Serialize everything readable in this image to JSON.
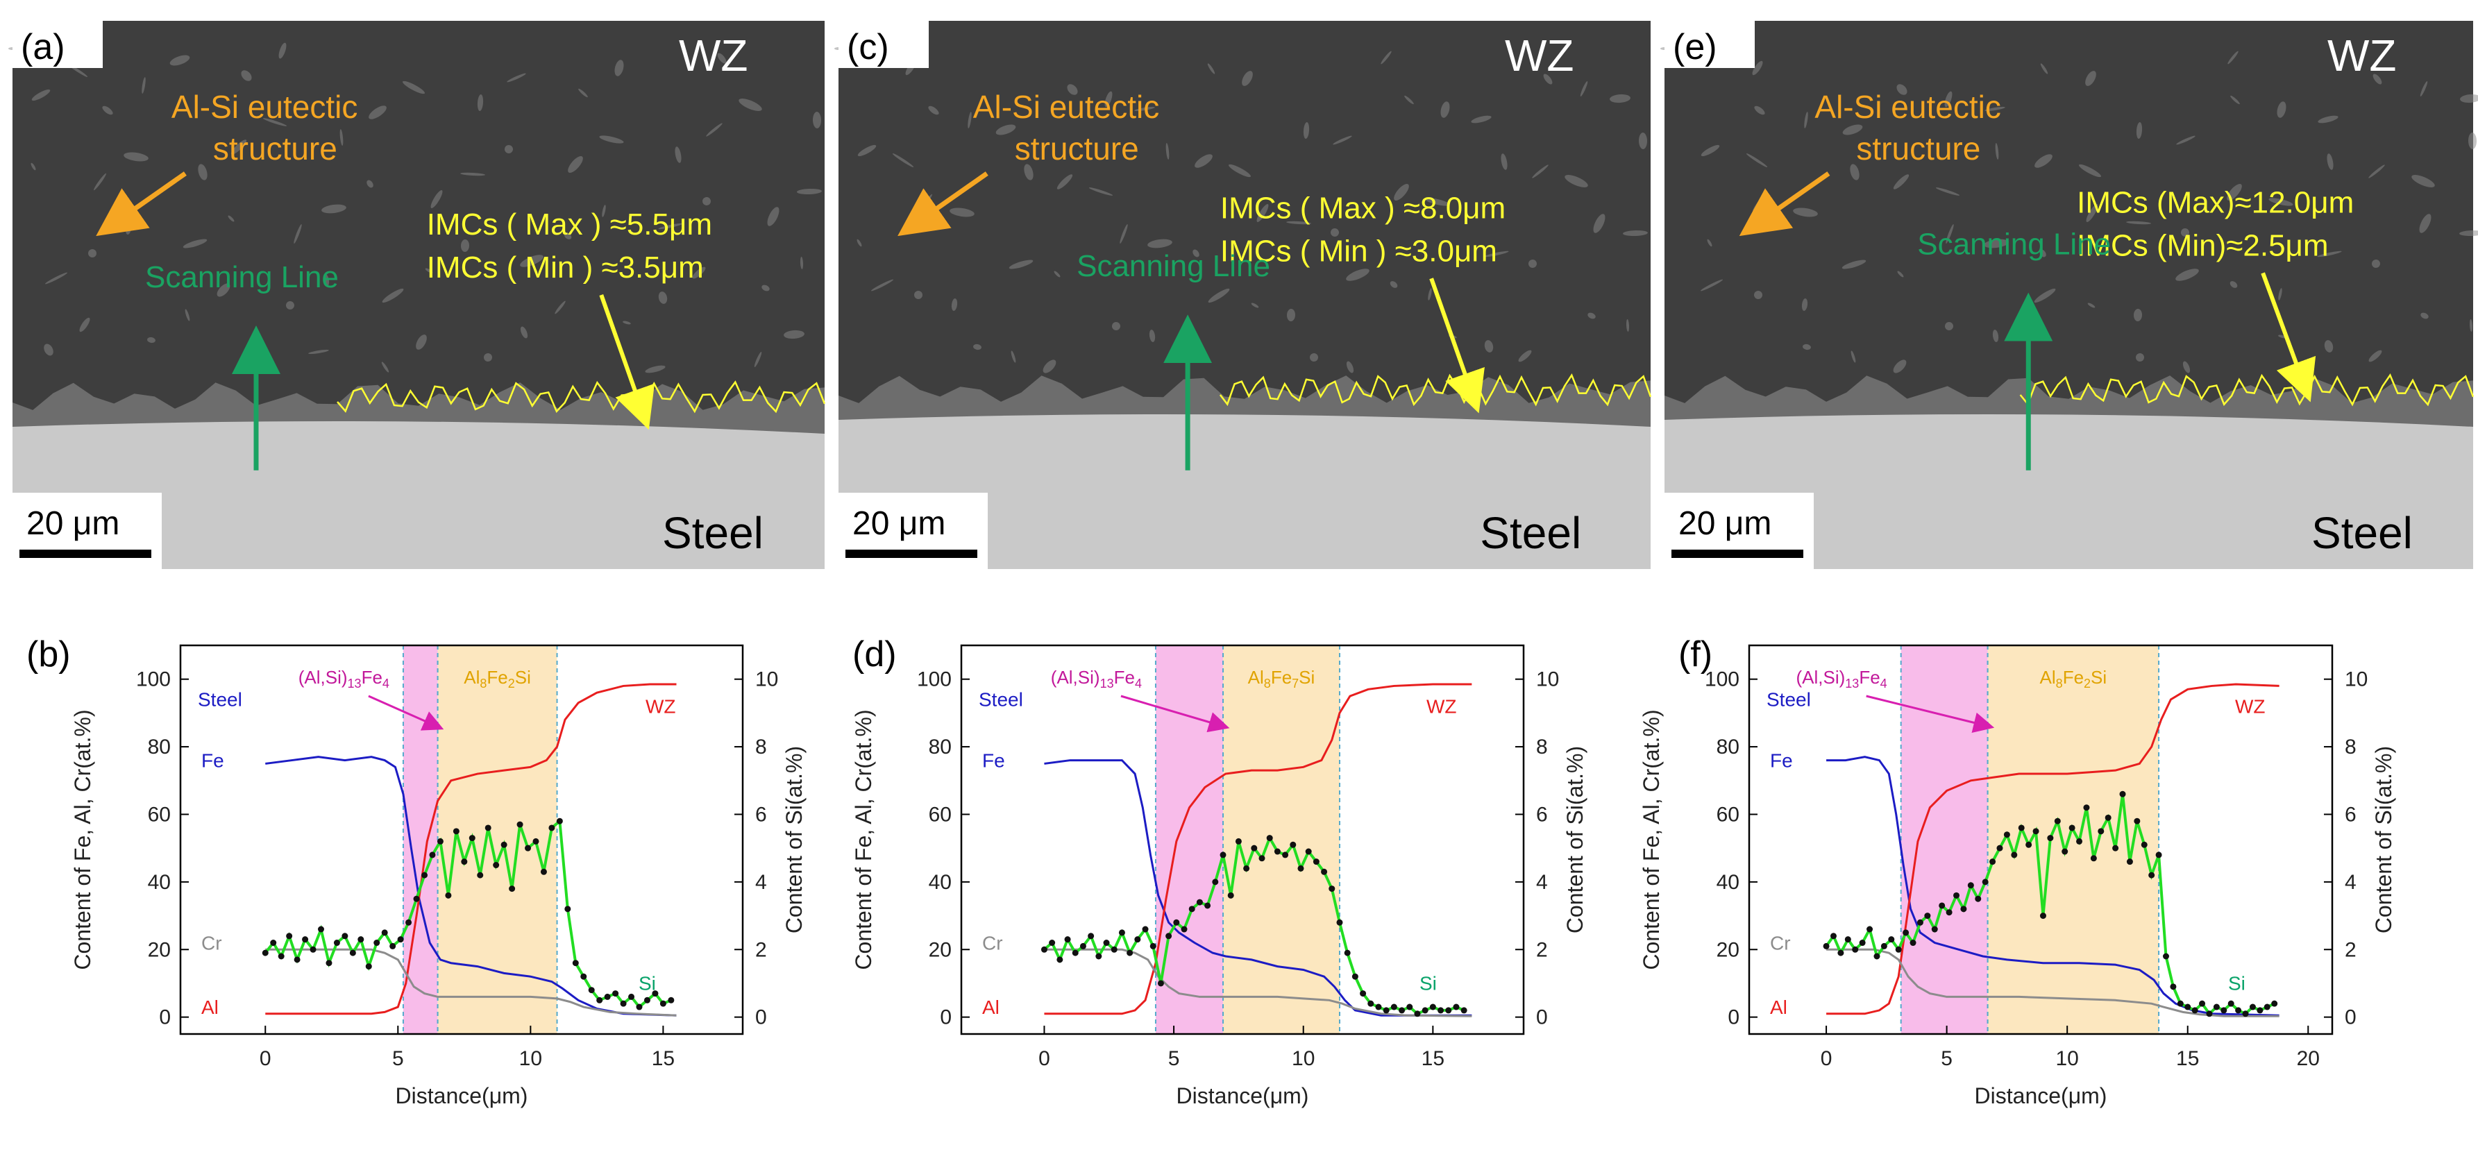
{
  "figure": {
    "panels_top": [
      {
        "label": "(a)",
        "zone": "WZ",
        "base": "Steel",
        "eutectic_line1": "Al-Si eutectic",
        "eutectic_line2": "structure",
        "imc_max": "IMCs ( Max ) ≈5.5μm",
        "imc_min": "IMCs  ( Min ) ≈3.5μm",
        "scan": "Scanning Line",
        "scalebar": "20 μm"
      },
      {
        "label": "(c)",
        "zone": "WZ",
        "base": "Steel",
        "eutectic_line1": "Al-Si eutectic",
        "eutectic_line2": "structure",
        "imc_max": "IMCs  ( Max ) ≈8.0μm",
        "imc_min": "IMCs  ( Min ) ≈3.0μm",
        "scan": "Scanning Line",
        "scalebar": "20 μm"
      },
      {
        "label": "(e)",
        "zone": "WZ",
        "base": "Steel",
        "eutectic_line1": "Al-Si eutectic",
        "eutectic_line2": "structure",
        "imc_max": "IMCs (Max)≈12.0μm",
        "imc_min": "IMCs  (Min)≈2.5μm",
        "scan": "Scanning Line",
        "scalebar": "20 μm"
      }
    ]
  },
  "chart_data": [
    {
      "type": "line",
      "panel": "(b)",
      "xlabel": "Distance(μm)",
      "ylabel_left": "Content of Fe, Al, Cr(at.%)",
      "ylabel_right": "Content of Si(at.%)",
      "xlim": [
        -3.2,
        18
      ],
      "ylim_left": [
        -5,
        110
      ],
      "ylim_right": [
        -0.5,
        11
      ],
      "xticks": [
        0,
        5,
        10,
        15
      ],
      "yticks_left": [
        0,
        20,
        40,
        60,
        80,
        100
      ],
      "yticks_right": [
        0,
        2,
        4,
        6,
        8,
        10
      ],
      "bands": [
        {
          "x0": 5.2,
          "x1": 6.5,
          "color": "#f7b0e6",
          "label": "(Al,Si)13Fe4"
        },
        {
          "x0": 6.5,
          "x1": 11.0,
          "color": "#fbe3b4",
          "label": "Al8Fe2Si"
        }
      ],
      "annotations": [
        "Steel",
        "WZ",
        "Fe",
        "Cr",
        "Al",
        "Si"
      ],
      "series": [
        {
          "name": "Fe",
          "axis": "left",
          "color": "#1c1cc4",
          "x": [
            0,
            1,
            2,
            3,
            4,
            4.5,
            4.9,
            5.2,
            5.5,
            5.8,
            6.2,
            6.6,
            7,
            8,
            9,
            10,
            10.8,
            11.2,
            11.8,
            12.5,
            13.5,
            15.5
          ],
          "y": [
            75,
            76,
            77,
            76,
            77,
            76,
            74,
            66,
            50,
            35,
            22,
            17,
            16,
            15,
            13,
            12,
            10.5,
            8.5,
            5,
            2.5,
            1,
            0.5
          ]
        },
        {
          "name": "Al",
          "axis": "left",
          "color": "#e81e1e",
          "x": [
            0,
            1,
            2,
            3,
            4,
            4.5,
            5,
            5.3,
            5.7,
            6.1,
            6.5,
            7,
            8,
            9,
            10,
            10.6,
            11.0,
            11.3,
            11.8,
            12.5,
            13.5,
            14.5,
            15.5
          ],
          "y": [
            1,
            1,
            1,
            1,
            1,
            1.5,
            3,
            10,
            30,
            52,
            64,
            70,
            72,
            73,
            74,
            76,
            80,
            88,
            93,
            96,
            98,
            98.5,
            98.5
          ]
        },
        {
          "name": "Cr",
          "axis": "left",
          "color": "#8c8c8c",
          "x": [
            0,
            1,
            2,
            3,
            4,
            4.5,
            5,
            5.3,
            5.6,
            6,
            6.5,
            7,
            8,
            9,
            10,
            11,
            11.5,
            12,
            13,
            14,
            15.5
          ],
          "y": [
            20,
            20,
            20,
            20,
            20,
            19,
            17,
            13,
            9,
            7,
            6,
            6,
            6,
            6,
            6,
            5.5,
            4.5,
            3,
            1.5,
            1,
            0.5
          ]
        },
        {
          "name": "Si",
          "axis": "right",
          "color": "#22dd22",
          "x": [
            0,
            0.3,
            0.6,
            0.9,
            1.2,
            1.5,
            1.8,
            2.1,
            2.4,
            2.7,
            3.0,
            3.3,
            3.6,
            3.9,
            4.2,
            4.5,
            4.8,
            5.1,
            5.4,
            5.7,
            6.0,
            6.3,
            6.6,
            6.9,
            7.2,
            7.5,
            7.8,
            8.1,
            8.4,
            8.7,
            9.0,
            9.3,
            9.6,
            9.9,
            10.2,
            10.5,
            10.8,
            11.1,
            11.4,
            11.7,
            12.0,
            12.3,
            12.6,
            12.9,
            13.2,
            13.5,
            13.8,
            14.1,
            14.4,
            14.7,
            15.0,
            15.3
          ],
          "y": [
            1.9,
            2.2,
            1.8,
            2.4,
            1.7,
            2.3,
            2.0,
            2.6,
            1.6,
            2.2,
            2.4,
            1.9,
            2.3,
            1.5,
            2.2,
            2.5,
            2.1,
            2.3,
            2.8,
            3.5,
            4.2,
            4.8,
            5.2,
            3.6,
            5.5,
            4.6,
            5.3,
            4.2,
            5.6,
            4.5,
            5.1,
            3.8,
            5.7,
            5.0,
            5.2,
            4.3,
            5.6,
            5.8,
            3.2,
            1.6,
            1.2,
            0.8,
            0.5,
            0.6,
            0.7,
            0.4,
            0.6,
            0.3,
            0.5,
            0.7,
            0.4,
            0.5
          ]
        }
      ]
    },
    {
      "type": "line",
      "panel": "(d)",
      "xlabel": "Distance(μm)",
      "ylabel_left": "Content of Fe, Al, Cr(at.%)",
      "ylabel_right": "Content of Si(at.%)",
      "xlim": [
        -3.2,
        18.5
      ],
      "ylim_left": [
        -5,
        110
      ],
      "ylim_right": [
        -0.5,
        11
      ],
      "xticks": [
        0,
        5,
        10,
        15
      ],
      "yticks_left": [
        0,
        20,
        40,
        60,
        80,
        100
      ],
      "yticks_right": [
        0,
        2,
        4,
        6,
        8,
        10
      ],
      "bands": [
        {
          "x0": 4.3,
          "x1": 6.9,
          "color": "#f7b0e6",
          "label": "(Al,Si)13Fe4"
        },
        {
          "x0": 6.9,
          "x1": 11.4,
          "color": "#fbe3b4",
          "label": "Al8Fe7Si"
        }
      ],
      "annotations": [
        "Steel",
        "WZ",
        "Fe",
        "Cr",
        "Al",
        "Si"
      ],
      "series": [
        {
          "name": "Fe",
          "axis": "left",
          "color": "#1c1cc4",
          "x": [
            0,
            1,
            2,
            3,
            3.5,
            3.8,
            4.1,
            4.4,
            4.8,
            5.2,
            5.8,
            6.5,
            7,
            8,
            9,
            10,
            10.8,
            11.2,
            11.6,
            12,
            13,
            16.5
          ],
          "y": [
            75,
            76,
            76,
            76,
            72,
            62,
            48,
            36,
            28,
            25,
            22,
            19,
            18,
            17,
            15,
            14,
            12,
            9,
            5,
            2,
            0.5,
            0.5
          ]
        },
        {
          "name": "Al",
          "axis": "left",
          "color": "#e81e1e",
          "x": [
            0,
            1,
            2,
            3,
            3.5,
            3.9,
            4.3,
            4.7,
            5.1,
            5.6,
            6.2,
            7,
            8,
            9,
            10,
            10.7,
            11.1,
            11.4,
            11.8,
            12.5,
            13.5,
            15,
            16.5
          ],
          "y": [
            1,
            1,
            1,
            1,
            2,
            5,
            16,
            35,
            52,
            62,
            68,
            72,
            73,
            73,
            74,
            76,
            82,
            90,
            95,
            97,
            98,
            98.5,
            98.5
          ]
        },
        {
          "name": "Cr",
          "axis": "left",
          "color": "#8c8c8c",
          "x": [
            0,
            1,
            2,
            3,
            3.5,
            4,
            4.4,
            4.8,
            5.2,
            6,
            7,
            8,
            9,
            10,
            11,
            11.5,
            12,
            13,
            14,
            16.5
          ],
          "y": [
            20,
            20,
            20,
            20,
            19,
            17,
            12,
            9,
            7,
            6,
            6,
            6,
            6,
            5.5,
            5,
            4,
            2.5,
            1,
            0.5,
            0.3
          ]
        },
        {
          "name": "Si",
          "axis": "right",
          "color": "#22dd22",
          "x": [
            0,
            0.3,
            0.6,
            0.9,
            1.2,
            1.5,
            1.8,
            2.1,
            2.4,
            2.7,
            3.0,
            3.3,
            3.6,
            3.9,
            4.2,
            4.5,
            4.8,
            5.1,
            5.4,
            5.7,
            6.0,
            6.3,
            6.6,
            6.9,
            7.2,
            7.5,
            7.8,
            8.1,
            8.4,
            8.7,
            9.0,
            9.3,
            9.6,
            9.9,
            10.2,
            10.5,
            10.8,
            11.1,
            11.4,
            11.7,
            12.0,
            12.3,
            12.6,
            12.9,
            13.2,
            13.5,
            13.8,
            14.1,
            14.4,
            14.7,
            15.0,
            15.3,
            15.6,
            15.9,
            16.2
          ],
          "y": [
            2.0,
            2.2,
            1.7,
            2.3,
            1.9,
            2.1,
            2.4,
            1.8,
            2.2,
            2.0,
            2.5,
            1.9,
            2.3,
            2.6,
            2.1,
            1.0,
            2.4,
            2.8,
            2.6,
            3.2,
            3.4,
            3.3,
            4.0,
            4.8,
            3.6,
            5.2,
            4.4,
            5.0,
            4.7,
            5.3,
            4.9,
            4.8,
            5.1,
            4.4,
            4.9,
            4.6,
            4.3,
            3.8,
            2.8,
            1.9,
            1.2,
            0.7,
            0.4,
            0.3,
            0.2,
            0.3,
            0.2,
            0.3,
            0.1,
            0.2,
            0.3,
            0.2,
            0.2,
            0.3,
            0.2
          ]
        }
      ]
    },
    {
      "type": "line",
      "panel": "(f)",
      "xlabel": "Distance(μm)",
      "ylabel_left": "Content of Fe, Al, Cr(at.%)",
      "ylabel_right": "Content of Si(at.%)",
      "xlim": [
        -3.2,
        21
      ],
      "ylim_left": [
        -5,
        110
      ],
      "ylim_right": [
        -0.5,
        11
      ],
      "xticks": [
        0,
        5,
        10,
        15,
        20
      ],
      "yticks_left": [
        0,
        20,
        40,
        60,
        80,
        100
      ],
      "yticks_right": [
        0,
        2,
        4,
        6,
        8,
        10
      ],
      "bands": [
        {
          "x0": 3.1,
          "x1": 6.7,
          "color": "#f7b0e6",
          "label": "(Al,Si)13Fe4"
        },
        {
          "x0": 6.7,
          "x1": 13.8,
          "color": "#fbe3b4",
          "label": "Al8Fe2Si"
        }
      ],
      "annotations": [
        "Steel",
        "WZ",
        "Fe",
        "Cr",
        "Al",
        "Si"
      ],
      "series": [
        {
          "name": "Fe",
          "axis": "left",
          "color": "#1c1cc4",
          "x": [
            0,
            0.8,
            1.6,
            2.2,
            2.6,
            2.9,
            3.2,
            3.5,
            3.9,
            4.5,
            5.5,
            6.5,
            7.5,
            9,
            10.5,
            12,
            13,
            13.6,
            14,
            14.5,
            15.2,
            16,
            18.8
          ],
          "y": [
            76,
            76,
            77,
            76,
            72,
            60,
            45,
            32,
            25,
            22,
            20,
            18,
            17,
            16,
            16,
            15.5,
            14,
            11,
            7,
            4,
            2,
            1,
            0.5
          ]
        },
        {
          "name": "Al",
          "axis": "left",
          "color": "#e81e1e",
          "x": [
            0,
            0.8,
            1.6,
            2.2,
            2.6,
            3.0,
            3.4,
            3.8,
            4.3,
            5,
            6,
            7,
            8,
            9,
            10,
            11,
            12,
            13,
            13.5,
            13.9,
            14.3,
            15,
            16,
            17,
            18.8
          ],
          "y": [
            1,
            1,
            1,
            2,
            4,
            12,
            32,
            52,
            62,
            67,
            70,
            71,
            72,
            72,
            72,
            72.5,
            73,
            75,
            80,
            88,
            94,
            97,
            98,
            98.5,
            98
          ]
        },
        {
          "name": "Cr",
          "axis": "left",
          "color": "#8c8c8c",
          "x": [
            0,
            1,
            2,
            2.6,
            3,
            3.4,
            3.8,
            4.3,
            5,
            6,
            7,
            8,
            10,
            12,
            13.5,
            14,
            14.8,
            15.5,
            16.5,
            18.8
          ],
          "y": [
            20,
            20,
            20,
            19,
            17,
            12,
            9,
            7,
            6,
            6,
            6,
            6,
            5.5,
            5,
            4,
            3,
            1.5,
            0.8,
            0.3,
            0.3
          ]
        },
        {
          "name": "Si",
          "axis": "right",
          "color": "#22dd22",
          "x": [
            0,
            0.3,
            0.6,
            0.9,
            1.2,
            1.5,
            1.8,
            2.1,
            2.4,
            2.7,
            3.0,
            3.3,
            3.6,
            3.9,
            4.2,
            4.5,
            4.8,
            5.1,
            5.4,
            5.7,
            6.0,
            6.3,
            6.6,
            6.9,
            7.2,
            7.5,
            7.8,
            8.1,
            8.4,
            8.7,
            9.0,
            9.3,
            9.6,
            9.9,
            10.2,
            10.5,
            10.8,
            11.1,
            11.4,
            11.7,
            12.0,
            12.3,
            12.6,
            12.9,
            13.2,
            13.5,
            13.8,
            14.1,
            14.4,
            14.7,
            15.0,
            15.3,
            15.6,
            15.9,
            16.2,
            16.5,
            16.8,
            17.1,
            17.4,
            17.7,
            18.0,
            18.3,
            18.6
          ],
          "y": [
            2.1,
            2.4,
            1.9,
            2.3,
            2.0,
            2.2,
            2.6,
            1.8,
            2.1,
            2.3,
            2.0,
            2.5,
            2.2,
            2.8,
            3.0,
            2.6,
            3.3,
            3.1,
            3.6,
            3.2,
            3.9,
            3.5,
            4.0,
            4.6,
            5.0,
            5.4,
            4.8,
            5.6,
            5.1,
            5.5,
            3.0,
            5.3,
            5.8,
            4.9,
            5.6,
            5.2,
            6.2,
            4.7,
            5.5,
            5.9,
            5.0,
            6.6,
            4.6,
            5.8,
            5.1,
            4.2,
            4.8,
            1.8,
            0.9,
            0.4,
            0.3,
            0.2,
            0.4,
            0.1,
            0.3,
            0.2,
            0.4,
            0.2,
            0.1,
            0.3,
            0.2,
            0.3,
            0.4
          ]
        }
      ]
    }
  ]
}
